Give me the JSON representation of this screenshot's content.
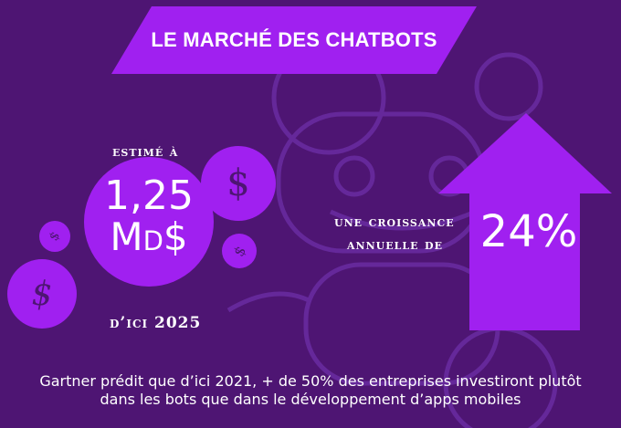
{
  "colors": {
    "background": "#4e1573",
    "accent": "#a020f0",
    "outline": "#6a2a98",
    "text": "#ffffff"
  },
  "icons": {
    "background": "robot-outline",
    "coins": "dollar-sign",
    "arrow": "arrow-up"
  },
  "banner": {
    "title": "LE MARCHÉ DES CHATBOTS"
  },
  "market": {
    "intro": "estimé à",
    "value": "1,25",
    "unit": "Md$",
    "deadline": "d’ici 2025"
  },
  "coins": {
    "symbol": "$"
  },
  "growth": {
    "line1": "une croissance",
    "line2": "annuelle de",
    "rate": "24%"
  },
  "footer": {
    "line1": "Gartner prédit que d’ici 2021, + de 50% des entreprises investiront plutôt",
    "line2": "dans les bots que dans le développement d’apps mobiles"
  }
}
